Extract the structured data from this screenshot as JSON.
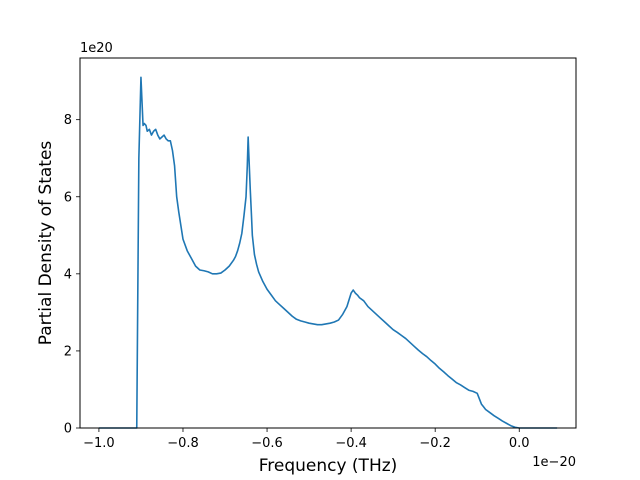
{
  "chart_data": {
    "type": "line",
    "title": "",
    "xlabel": "Frequency (THz)",
    "ylabel": "Partial Density of States",
    "x_offset_label": "1e−20",
    "y_offset_label": "1e20",
    "xlim": [
      -1.045,
      0.135
    ],
    "ylim": [
      0,
      9.6
    ],
    "xticks": [
      -1.0,
      -0.8,
      -0.6,
      -0.4,
      -0.2,
      0.0
    ],
    "xtick_labels": [
      "−1.0",
      "−0.8",
      "−0.6",
      "−0.4",
      "−0.2",
      "0.0"
    ],
    "yticks": [
      0,
      2,
      4,
      6,
      8
    ],
    "ytick_labels": [
      "0",
      "2",
      "4",
      "6",
      "8"
    ],
    "grid": false,
    "line_color": "#1f77b4",
    "series": [
      {
        "x": [
          -1.0,
          -0.91,
          -0.905,
          -0.9,
          -0.895,
          -0.892,
          -0.888,
          -0.885,
          -0.88,
          -0.875,
          -0.87,
          -0.865,
          -0.86,
          -0.855,
          -0.85,
          -0.845,
          -0.84,
          -0.835,
          -0.83,
          -0.825,
          -0.82,
          -0.815,
          -0.81,
          -0.8,
          -0.79,
          -0.78,
          -0.77,
          -0.76,
          -0.75,
          -0.74,
          -0.73,
          -0.72,
          -0.71,
          -0.7,
          -0.69,
          -0.68,
          -0.675,
          -0.67,
          -0.665,
          -0.66,
          -0.655,
          -0.65,
          -0.647,
          -0.645,
          -0.643,
          -0.64,
          -0.637,
          -0.635,
          -0.63,
          -0.625,
          -0.62,
          -0.61,
          -0.6,
          -0.59,
          -0.58,
          -0.57,
          -0.56,
          -0.55,
          -0.54,
          -0.53,
          -0.52,
          -0.51,
          -0.5,
          -0.49,
          -0.48,
          -0.47,
          -0.46,
          -0.45,
          -0.44,
          -0.43,
          -0.42,
          -0.41,
          -0.4,
          -0.395,
          -0.39,
          -0.385,
          -0.38,
          -0.37,
          -0.36,
          -0.35,
          -0.34,
          -0.33,
          -0.32,
          -0.31,
          -0.3,
          -0.29,
          -0.28,
          -0.27,
          -0.26,
          -0.25,
          -0.24,
          -0.23,
          -0.22,
          -0.21,
          -0.2,
          -0.19,
          -0.18,
          -0.17,
          -0.16,
          -0.15,
          -0.14,
          -0.13,
          -0.12,
          -0.11,
          -0.1,
          -0.09,
          -0.085,
          -0.08,
          -0.07,
          -0.06,
          -0.05,
          -0.04,
          -0.03,
          -0.02,
          -0.01,
          0.0,
          0.01,
          0.03,
          0.06,
          0.09
        ],
        "y": [
          0.0,
          0.0,
          7.0,
          9.1,
          7.85,
          7.9,
          7.85,
          7.7,
          7.75,
          7.6,
          7.7,
          7.75,
          7.6,
          7.5,
          7.55,
          7.6,
          7.5,
          7.45,
          7.45,
          7.2,
          6.8,
          6.0,
          5.6,
          4.9,
          4.6,
          4.4,
          4.2,
          4.1,
          4.08,
          4.05,
          4.0,
          4.0,
          4.02,
          4.1,
          4.2,
          4.35,
          4.45,
          4.6,
          4.8,
          5.05,
          5.5,
          6.0,
          6.8,
          7.55,
          7.0,
          6.2,
          5.5,
          5.0,
          4.5,
          4.25,
          4.05,
          3.8,
          3.6,
          3.45,
          3.3,
          3.2,
          3.1,
          3.0,
          2.9,
          2.82,
          2.78,
          2.75,
          2.72,
          2.7,
          2.68,
          2.68,
          2.7,
          2.72,
          2.75,
          2.8,
          2.95,
          3.15,
          3.5,
          3.58,
          3.5,
          3.45,
          3.38,
          3.3,
          3.15,
          3.05,
          2.95,
          2.85,
          2.75,
          2.65,
          2.55,
          2.48,
          2.4,
          2.32,
          2.22,
          2.12,
          2.02,
          1.93,
          1.85,
          1.75,
          1.66,
          1.55,
          1.46,
          1.36,
          1.27,
          1.18,
          1.12,
          1.05,
          0.98,
          0.95,
          0.9,
          0.62,
          0.55,
          0.48,
          0.4,
          0.32,
          0.25,
          0.18,
          0.12,
          0.06,
          0.02,
          0.0,
          0.0,
          0.0,
          0.0,
          0.0
        ]
      }
    ]
  }
}
